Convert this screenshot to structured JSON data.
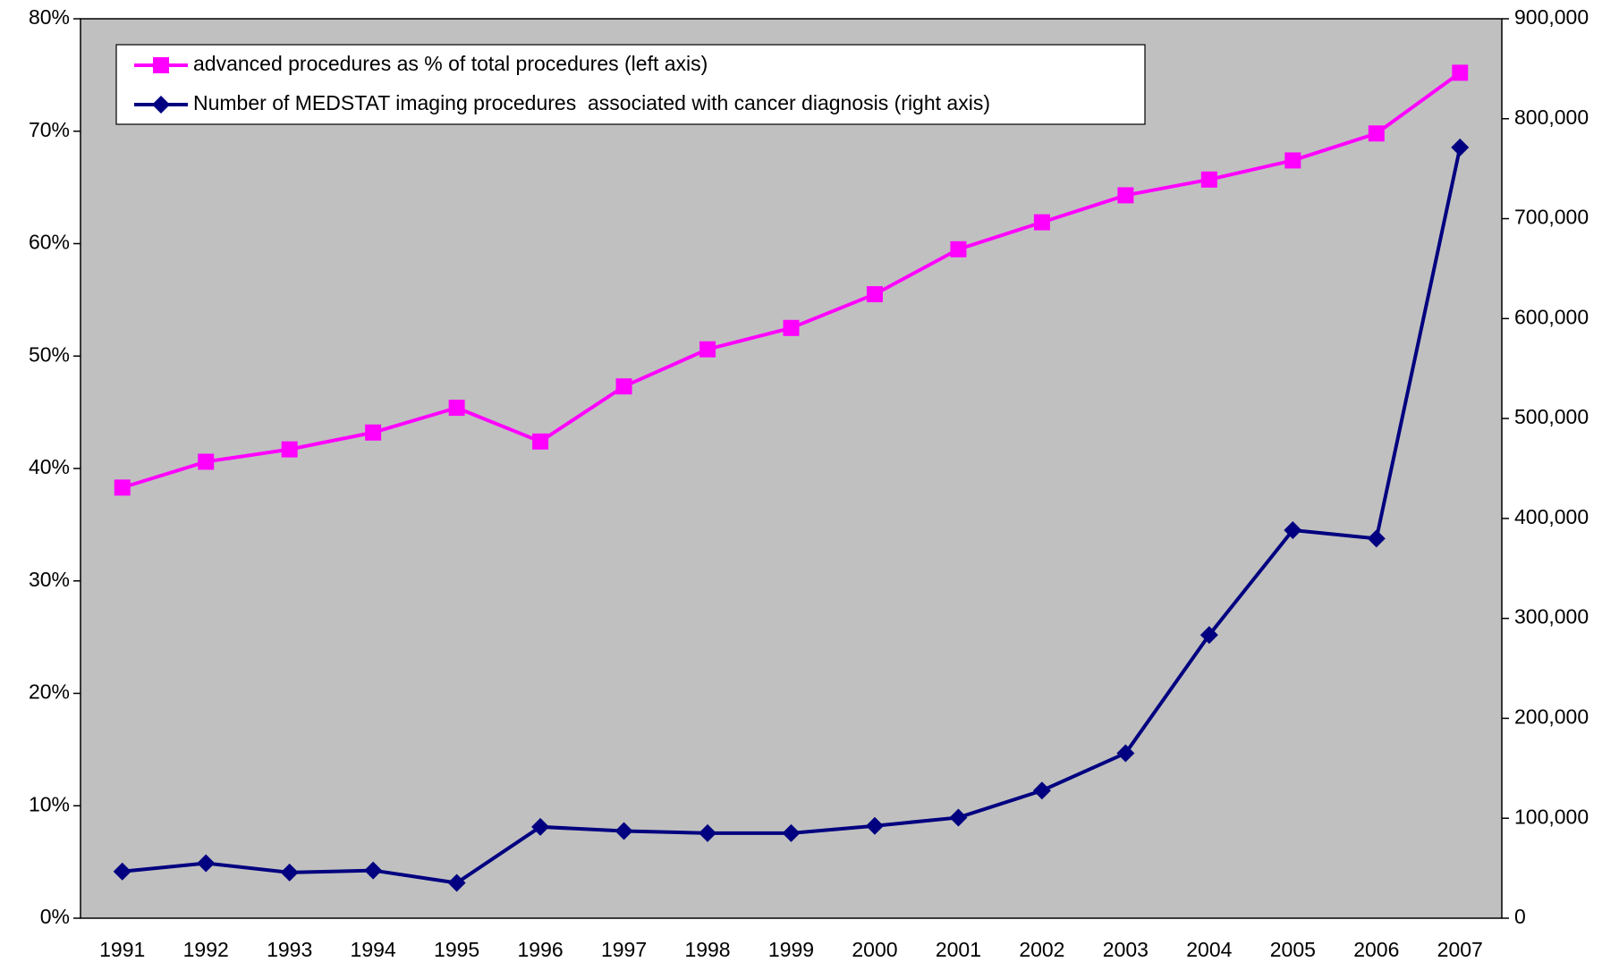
{
  "chart_data": {
    "type": "line",
    "categories": [
      "1991",
      "1992",
      "1993",
      "1994",
      "1995",
      "1996",
      "1997",
      "1998",
      "1999",
      "2000",
      "2001",
      "2002",
      "2003",
      "2004",
      "2005",
      "2006",
      "2007"
    ],
    "series": [
      {
        "name": "advanced procedures as % of total procedures (left axis)",
        "color": "#FF00FF",
        "marker": "square",
        "values": [
          38.3,
          40.6,
          41.7,
          43.2,
          45.4,
          42.4,
          47.3,
          50.6,
          52.5,
          55.5,
          59.5,
          61.9,
          64.3,
          65.7,
          67.4,
          69.8,
          75.2
        ]
      },
      {
        "name": "Number of MEDSTAT imaging procedures  associated with cancer diagnosis (right axis)",
        "color": "#000080",
        "marker": "diamond",
        "axis": "y2",
        "values": [
          46700,
          55000,
          45700,
          47800,
          35300,
          91400,
          87200,
          85100,
          85100,
          92400,
          100700,
          127700,
          165100,
          283400,
          388300,
          379900,
          771300
        ]
      }
    ],
    "ylim": [
      0,
      80
    ],
    "yticks": [
      {
        "value": 0,
        "label": "0%"
      },
      {
        "value": 10,
        "label": "10%"
      },
      {
        "value": 20,
        "label": "20%"
      },
      {
        "value": 30,
        "label": "30%"
      },
      {
        "value": 40,
        "label": "40%"
      },
      {
        "value": 50,
        "label": "50%"
      },
      {
        "value": 60,
        "label": "60%"
      },
      {
        "value": 70,
        "label": "70%"
      },
      {
        "value": 80,
        "label": "80%"
      }
    ],
    "y2lim": [
      0,
      900000
    ],
    "y2ticks": [
      0,
      {
        "value": 100000,
        "label": "100,000"
      },
      {
        "value": 200000,
        "label": "200,000"
      },
      {
        "value": 300000,
        "label": "300,000"
      },
      {
        "value": 400000,
        "label": "400,000"
      },
      {
        "value": 500000,
        "label": "500,000"
      },
      {
        "value": 600000,
        "label": "600,000"
      },
      {
        "value": 700000,
        "label": "700,000"
      },
      {
        "value": 800000,
        "label": "800,000"
      },
      {
        "value": 900000,
        "label": "900,000"
      }
    ],
    "background": "#C0C0C0",
    "legend": "top-left"
  }
}
